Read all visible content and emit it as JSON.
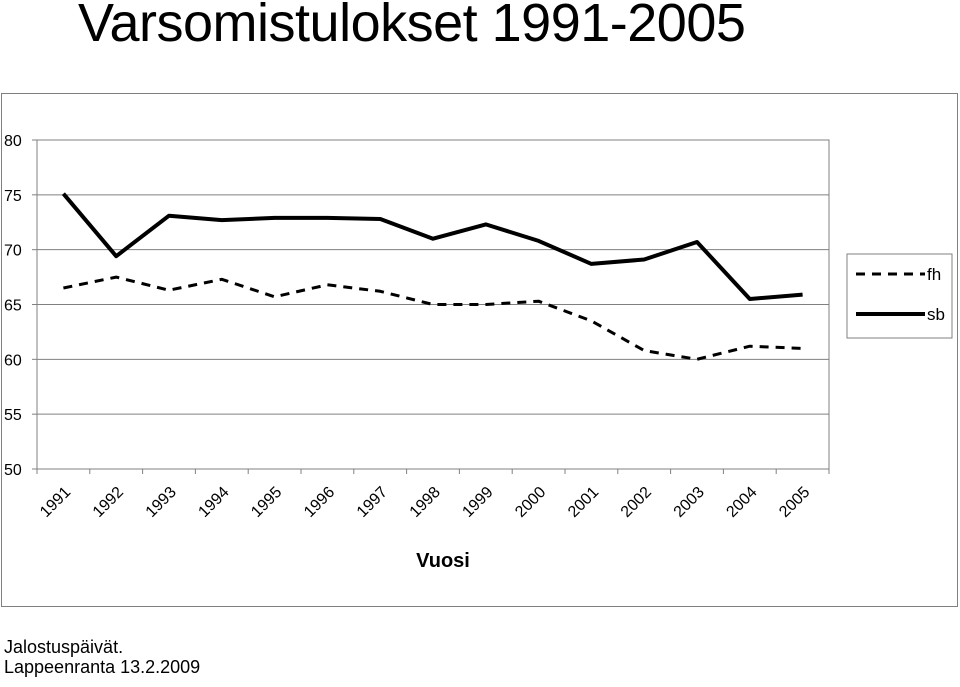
{
  "title": "Varsomistulokset 1991-2005",
  "footer": {
    "line1": "Jalostuspäivät.",
    "line2": "Lappeenranta 13.2.2009"
  },
  "chart_data": {
    "type": "line",
    "title": "",
    "xlabel": "Vuosi",
    "ylabel": "",
    "ylim": [
      50,
      80
    ],
    "yticks": [
      50,
      55,
      60,
      65,
      70,
      75,
      80
    ],
    "grid": true,
    "legend_position": "right",
    "x": [
      "1991",
      "1992",
      "1993",
      "1994",
      "1995",
      "1996",
      "1997",
      "1998",
      "1999",
      "2000",
      "2001",
      "2002",
      "2003",
      "2004",
      "2005"
    ],
    "series": [
      {
        "name": "fh",
        "style": "dashed",
        "color": "#000000",
        "values": [
          66.5,
          67.5,
          66.3,
          67.3,
          65.7,
          66.8,
          66.2,
          65.0,
          65.0,
          65.3,
          63.5,
          60.8,
          60.0,
          61.2,
          61.0
        ]
      },
      {
        "name": "sb",
        "style": "solid",
        "color": "#000000",
        "values": [
          75.1,
          69.4,
          73.1,
          72.7,
          72.9,
          72.9,
          72.8,
          71.0,
          72.3,
          70.8,
          68.7,
          69.1,
          70.7,
          65.5,
          65.9
        ]
      }
    ]
  }
}
